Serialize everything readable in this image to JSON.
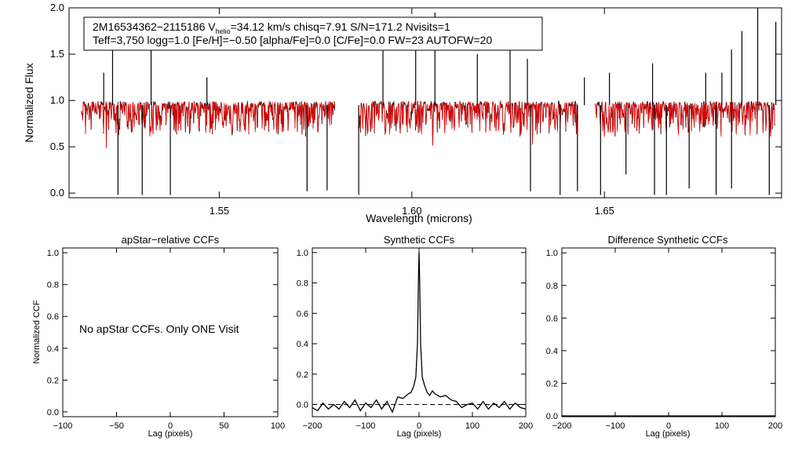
{
  "chart_data": [
    {
      "type": "line",
      "id": "spectrum",
      "title": "",
      "xlabel": "Wavelength (microns)",
      "ylabel": "Normalized Flux",
      "xlim": [
        1.511,
        1.696
      ],
      "ylim": [
        -0.05,
        2.0
      ],
      "xticks": [
        {
          "v": 1.55,
          "label": "1.55"
        },
        {
          "v": 1.6,
          "label": "1.60"
        },
        {
          "v": 1.65,
          "label": "1.65"
        }
      ],
      "yticks": [
        {
          "v": 0.0,
          "label": "0.0"
        },
        {
          "v": 0.5,
          "label": "0.5"
        },
        {
          "v": 1.0,
          "label": "1.0"
        },
        {
          "v": 1.5,
          "label": "1.5"
        },
        {
          "v": 2.0,
          "label": "2.0"
        }
      ],
      "series": [
        {
          "name": "observed spectrum",
          "color": "#000000"
        },
        {
          "name": "synthetic best-fit model",
          "color": "#e00000"
        }
      ],
      "chips": [
        [
          1.5142,
          1.58
        ],
        [
          1.5862,
          1.6431
        ],
        [
          1.6476,
          1.6942
        ]
      ],
      "spikes_up": [
        [
          1.52,
          1.3
        ],
        [
          1.5223,
          1.75
        ],
        [
          1.5323,
          1.85
        ],
        [
          1.5468,
          1.25
        ],
        [
          1.5925,
          1.55
        ],
        [
          1.601,
          1.8
        ],
        [
          1.606,
          1.95
        ],
        [
          1.617,
          1.5
        ],
        [
          1.6255,
          1.75
        ],
        [
          1.63,
          1.45
        ],
        [
          1.6448,
          1.25
        ],
        [
          1.6513,
          1.3
        ],
        [
          1.6625,
          1.4
        ],
        [
          1.6763,
          1.3
        ],
        [
          1.6805,
          1.3
        ],
        [
          1.683,
          1.55
        ],
        [
          1.6857,
          1.75
        ],
        [
          1.6898,
          2.0
        ],
        [
          1.6945,
          1.85
        ]
      ],
      "spikes_down": [
        [
          1.5237,
          -0.02
        ],
        [
          1.53,
          -0.02
        ],
        [
          1.5373,
          -0.02
        ],
        [
          1.5728,
          0.02
        ],
        [
          1.578,
          0.03
        ],
        [
          1.5862,
          -0.02
        ],
        [
          1.6308,
          0.02
        ],
        [
          1.6385,
          -0.02
        ],
        [
          1.643,
          0.02
        ],
        [
          1.649,
          -0.02
        ],
        [
          1.6556,
          0.2
        ],
        [
          1.663,
          -0.02
        ],
        [
          1.6661,
          -0.02
        ],
        [
          1.672,
          0.05
        ],
        [
          1.679,
          -0.02
        ],
        [
          1.683,
          0.05
        ],
        [
          1.6928,
          -0.02
        ]
      ],
      "legend_box": {
        "line1_a": "2M16534362−2115186  V",
        "line1_sub": "helio",
        "line1_b": "=34.12 km/s  chisq=7.91  S/N=171.2  Nvisits=1",
        "line2": "Teff=3,750 logg=1.0 [Fe/H]=−0.50 [alpha/Fe]=0.0 [C/Fe]=0.0 FW=23 AUTOFW=20"
      }
    },
    {
      "type": "line",
      "id": "apstar_ccf",
      "title": "apStar−relative CCFs",
      "xlabel": "Lag (pixels)",
      "ylabel": "Normalized CCF",
      "xlim": [
        -100,
        100
      ],
      "ylim": [
        -0.03,
        1.03
      ],
      "xticks": [
        {
          "v": -100,
          "label": "−100"
        },
        {
          "v": -50,
          "label": "−50"
        },
        {
          "v": 0,
          "label": "0"
        },
        {
          "v": 50,
          "label": "50"
        },
        {
          "v": 100,
          "label": "100"
        }
      ],
      "yticks": [
        {
          "v": 0.0,
          "label": "0.0"
        },
        {
          "v": 0.2,
          "label": "0.2"
        },
        {
          "v": 0.4,
          "label": "0.4"
        },
        {
          "v": 0.6,
          "label": "0.6"
        },
        {
          "v": 0.8,
          "label": "0.8"
        },
        {
          "v": 1.0,
          "label": "1.0"
        }
      ],
      "annotation": "No apStar CCFs.  Only ONE Visit",
      "series": []
    },
    {
      "type": "line",
      "id": "synthetic_ccf",
      "title": "Synthetic CCFs",
      "xlabel": "Lag (pixels)",
      "ylabel": "",
      "xlim": [
        -200,
        200
      ],
      "ylim": [
        -0.08,
        1.03
      ],
      "xticks": [
        {
          "v": -200,
          "label": "−200"
        },
        {
          "v": -100,
          "label": "−100"
        },
        {
          "v": 0,
          "label": "0"
        },
        {
          "v": 100,
          "label": "100"
        },
        {
          "v": 200,
          "label": "200"
        }
      ],
      "yticks": [
        {
          "v": 0.0,
          "label": "0.0"
        },
        {
          "v": 0.2,
          "label": "0.2"
        },
        {
          "v": 0.4,
          "label": "0.4"
        },
        {
          "v": 0.6,
          "label": "0.6"
        },
        {
          "v": 0.8,
          "label": "0.8"
        },
        {
          "v": 1.0,
          "label": "1.0"
        }
      ],
      "baseline": 0.0,
      "series": [
        {
          "name": "synthetic CCF",
          "color": "#000000",
          "x": [
            -200,
            -190,
            -180,
            -170,
            -160,
            -150,
            -140,
            -130,
            -120,
            -110,
            -100,
            -90,
            -80,
            -70,
            -60,
            -50,
            -40,
            -30,
            -20,
            -15,
            -10,
            -6,
            -3,
            -1,
            0,
            1,
            3,
            6,
            10,
            15,
            20,
            25,
            30,
            40,
            50,
            60,
            70,
            80,
            90,
            100,
            110,
            120,
            130,
            140,
            150,
            160,
            170,
            180,
            190,
            200
          ],
          "y": [
            -0.02,
            -0.04,
            0.01,
            -0.03,
            0.0,
            -0.03,
            0.02,
            -0.02,
            0.03,
            -0.04,
            0.01,
            -0.02,
            0.03,
            -0.03,
            0.02,
            -0.05,
            0.05,
            0.04,
            0.07,
            0.08,
            0.12,
            0.18,
            0.4,
            0.85,
            1.0,
            0.85,
            0.4,
            0.18,
            0.13,
            0.08,
            0.06,
            0.09,
            0.07,
            0.05,
            0.06,
            0.03,
            0.02,
            -0.02,
            0.0,
            0.01,
            -0.03,
            0.02,
            -0.03,
            0.01,
            -0.02,
            0.02,
            -0.03,
            0.01,
            -0.02,
            -0.03
          ]
        }
      ]
    },
    {
      "type": "line",
      "id": "difference_ccf",
      "title": "Difference Synthetic CCFs",
      "xlabel": "Lag (pixels)",
      "ylabel": "",
      "xlim": [
        -200,
        200
      ],
      "ylim": [
        -0.005,
        1.03
      ],
      "xticks": [
        {
          "v": -200,
          "label": "−200"
        },
        {
          "v": -100,
          "label": "−100"
        },
        {
          "v": 0,
          "label": "0"
        },
        {
          "v": 100,
          "label": "100"
        },
        {
          "v": 200,
          "label": "200"
        }
      ],
      "yticks": [
        {
          "v": 0.0,
          "label": "0.0"
        },
        {
          "v": 0.2,
          "label": "0.2"
        },
        {
          "v": 0.4,
          "label": "0.4"
        },
        {
          "v": 0.6,
          "label": "0.6"
        },
        {
          "v": 0.8,
          "label": "0.8"
        },
        {
          "v": 1.0,
          "label": "1.0"
        }
      ],
      "series": [
        {
          "name": "difference CCF",
          "color": "#000000",
          "x": [
            -200,
            200
          ],
          "y": [
            0.0,
            0.0
          ]
        }
      ]
    }
  ]
}
